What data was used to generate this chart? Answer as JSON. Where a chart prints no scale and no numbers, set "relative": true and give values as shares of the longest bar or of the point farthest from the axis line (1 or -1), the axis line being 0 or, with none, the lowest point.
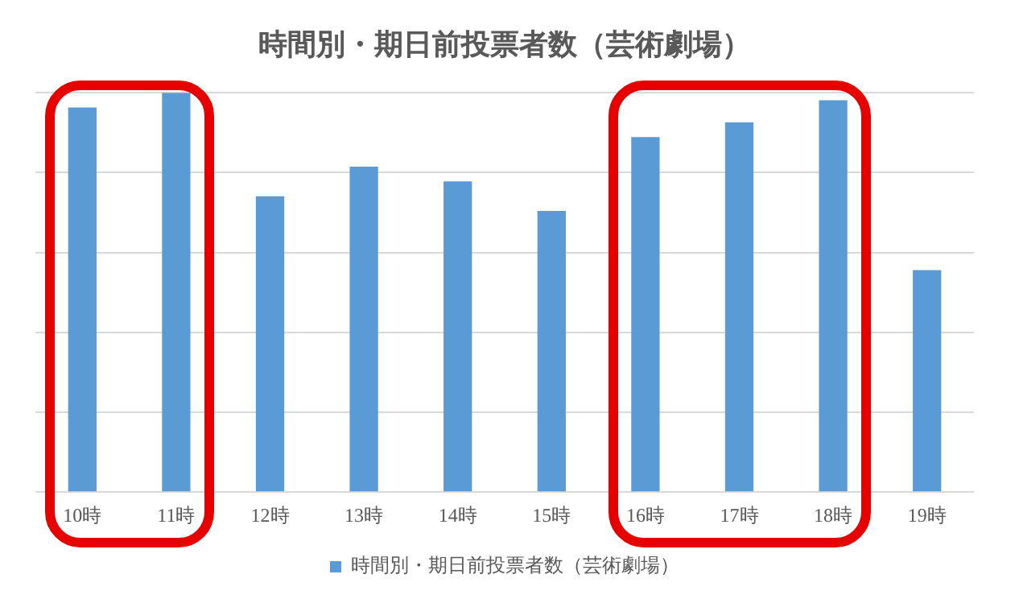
{
  "chart_data": {
    "type": "bar",
    "title": "時間別・期日前投票者数（芸術劇場）",
    "categories": [
      "10時",
      "11時",
      "12時",
      "13時",
      "14時",
      "15時",
      "16時",
      "17時",
      "18時",
      "19時"
    ],
    "series": [
      {
        "name": "時間別・期日前投票者数（芸術劇場）",
        "color": "#5b9bd5",
        "values": [
          0.963,
          1,
          0.741,
          0.815,
          0.778,
          0.704,
          0.889,
          0.926,
          0.981,
          0.556
        ]
      }
    ],
    "relative": true,
    "grid": "y",
    "legend": "bottom"
  }
}
